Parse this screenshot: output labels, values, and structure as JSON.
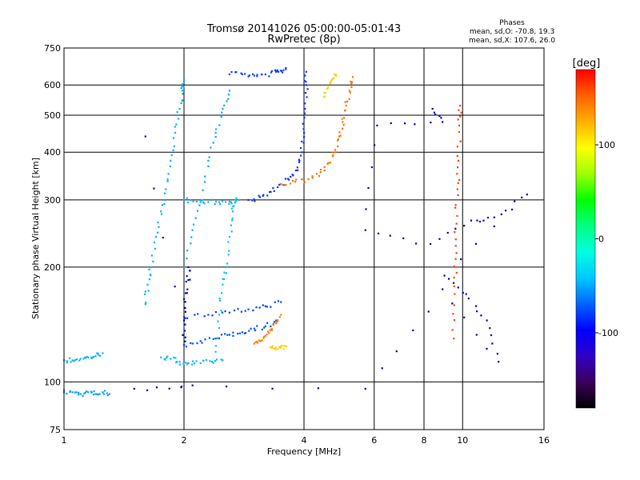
{
  "chart_data": {
    "type": "scatter",
    "title": "Tromsø 20141026 05:00:00-05:01:43",
    "subtitle": "RwPretec (8p)",
    "xlabel": "Frequency [MHz]",
    "ylabel": "Stationary phase Virtual Height [km]",
    "x_scale": "log",
    "y_scale": "log",
    "xlim": [
      1,
      16
    ],
    "ylim": [
      75,
      750
    ],
    "x_ticks": [
      1,
      2,
      4,
      6,
      8,
      10,
      16
    ],
    "y_ticks": [
      75,
      100,
      200,
      300,
      400,
      500,
      600,
      750
    ],
    "grid": true,
    "legend": {
      "title": "Phases",
      "lines": [
        "mean, sd,O: -70.8, 19.3",
        "mean, sd,X: 107.6, 26.0"
      ],
      "placement": "top-right"
    },
    "colorbar": {
      "label": "[deg]",
      "ticks": [
        100,
        0,
        -100
      ],
      "range": [
        -180,
        180
      ],
      "colors": [
        "#000000",
        "#3c005a",
        "#3000c8",
        "#0000ff",
        "#0064ff",
        "#00c8ff",
        "#00ffe0",
        "#00ff80",
        "#00ff00",
        "#a0ff00",
        "#ffff00",
        "#ffb000",
        "#ff6000",
        "#ff0000"
      ]
    },
    "series": [
      {
        "values": [
          [
            1.0,
            94
          ],
          [
            1.05,
            94
          ],
          [
            1.1,
            93
          ],
          [
            1.15,
            94
          ],
          [
            1.2,
            93
          ],
          [
            1.25,
            94
          ],
          [
            1.3,
            93
          ]
        ],
        "color": "#00a0ff"
      },
      {
        "values": [
          [
            1.0,
            114
          ],
          [
            1.05,
            114
          ],
          [
            1.1,
            115
          ],
          [
            1.15,
            116
          ],
          [
            1.2,
            117
          ],
          [
            1.25,
            119
          ]
        ],
        "color": "#00b4ff"
      },
      {
        "values": [
          [
            1.75,
            116
          ],
          [
            1.85,
            115
          ],
          [
            1.95,
            113
          ],
          [
            2.05,
            112
          ],
          [
            2.2,
            112
          ],
          [
            2.35,
            113
          ],
          [
            2.5,
            114
          ]
        ],
        "color": "#00b8ff"
      },
      {
        "values": [
          [
            1.6,
            160
          ],
          [
            1.62,
            180
          ],
          [
            1.65,
            200
          ],
          [
            1.7,
            240
          ],
          [
            1.75,
            280
          ],
          [
            1.8,
            320
          ],
          [
            1.85,
            380
          ],
          [
            1.9,
            450
          ],
          [
            1.95,
            520
          ],
          [
            1.98,
            580
          ],
          [
            2.0,
            620
          ]
        ],
        "color": "#00b0ff"
      },
      {
        "values": [
          [
            2.0,
            300
          ],
          [
            2.15,
            297
          ],
          [
            2.3,
            296
          ],
          [
            2.45,
            296
          ],
          [
            2.6,
            297
          ],
          [
            2.75,
            300
          ]
        ],
        "color": "#00b8ff"
      },
      {
        "values": [
          [
            2.0,
            200
          ],
          [
            2.1,
            250
          ],
          [
            2.2,
            300
          ],
          [
            2.3,
            380
          ],
          [
            2.4,
            450
          ],
          [
            2.5,
            520
          ],
          [
            2.6,
            580
          ]
        ],
        "color": "#00a8ff"
      },
      {
        "values": [
          [
            2.4,
            120
          ],
          [
            2.45,
            150
          ],
          [
            2.5,
            180
          ],
          [
            2.55,
            200
          ],
          [
            2.6,
            240
          ],
          [
            2.65,
            280
          ],
          [
            2.7,
            300
          ]
        ],
        "color": "#00c0ff"
      },
      {
        "values": [
          [
            2.0,
            125
          ],
          [
            2.0,
            145
          ],
          [
            2.0,
            165
          ],
          [
            2.05,
            185
          ],
          [
            2.05,
            200
          ]
        ],
        "color": "#0000d0"
      },
      {
        "values": [
          [
            2.0,
            125
          ],
          [
            2.2,
            128
          ],
          [
            2.4,
            130
          ],
          [
            2.6,
            133
          ],
          [
            2.8,
            135
          ],
          [
            3.0,
            138
          ],
          [
            3.2,
            140
          ],
          [
            3.4,
            145
          ]
        ],
        "color": "#0050ff"
      },
      {
        "values": [
          [
            2.0,
            148
          ],
          [
            2.3,
            150
          ],
          [
            2.6,
            152
          ],
          [
            2.9,
            155
          ],
          [
            3.2,
            158
          ],
          [
            3.5,
            162
          ]
        ],
        "color": "#0040ff"
      },
      {
        "values": [
          [
            3.0,
            126
          ],
          [
            3.1,
            128
          ],
          [
            3.2,
            132
          ],
          [
            3.3,
            137
          ],
          [
            3.4,
            143
          ],
          [
            3.5,
            150
          ]
        ],
        "color": "#ff8000"
      },
      {
        "values": [
          [
            3.3,
            123
          ],
          [
            3.4,
            123
          ],
          [
            3.5,
            123
          ],
          [
            3.6,
            124
          ]
        ],
        "color": "#ffd000"
      },
      {
        "values": [
          [
            2.9,
            300
          ],
          [
            3.1,
            305
          ],
          [
            3.3,
            315
          ],
          [
            3.5,
            330
          ],
          [
            3.7,
            345
          ],
          [
            3.85,
            365
          ],
          [
            3.95,
            400
          ],
          [
            4.0,
            450
          ],
          [
            4.02,
            520
          ],
          [
            4.05,
            600
          ],
          [
            4.05,
            650
          ]
        ],
        "color": "#1030ff"
      },
      {
        "values": [
          [
            3.5,
            330
          ],
          [
            3.8,
            335
          ],
          [
            4.1,
            340
          ],
          [
            4.4,
            355
          ],
          [
            4.6,
            375
          ],
          [
            4.8,
            400
          ],
          [
            4.9,
            440
          ],
          [
            5.0,
            480
          ],
          [
            5.1,
            530
          ],
          [
            5.2,
            580
          ],
          [
            5.3,
            630
          ]
        ],
        "color": "#ff7000"
      },
      {
        "values": [
          [
            4.5,
            560
          ],
          [
            4.6,
            590
          ],
          [
            4.7,
            620
          ],
          [
            4.8,
            640
          ]
        ],
        "color": "#ffd000"
      },
      {
        "values": [
          [
            2.6,
            640
          ],
          [
            2.8,
            640
          ],
          [
            3.0,
            635
          ],
          [
            3.2,
            640
          ],
          [
            3.4,
            650
          ],
          [
            3.5,
            655
          ],
          [
            3.6,
            660
          ]
        ],
        "color": "#1040ff"
      },
      {
        "values": [
          [
            9.5,
            130
          ],
          [
            9.55,
            170
          ],
          [
            9.6,
            210
          ],
          [
            9.65,
            260
          ],
          [
            9.7,
            320
          ],
          [
            9.75,
            380
          ],
          [
            9.8,
            470
          ],
          [
            9.85,
            530
          ]
        ],
        "color": "#ff4000"
      },
      {
        "values": [
          [
            8.4,
            520
          ],
          [
            8.9,
            480
          ],
          [
            6.1,
            470
          ],
          [
            5.7,
            250
          ],
          [
            8.3,
            230
          ],
          [
            10.5,
            265
          ],
          [
            12.0,
            270
          ],
          [
            14.5,
            310
          ],
          [
            9.0,
            190
          ],
          [
            10.2,
            170
          ],
          [
            11.5,
            145
          ],
          [
            12.3,
            113
          ],
          [
            8.9,
            175
          ],
          [
            5.7,
            96
          ],
          [
            1.5,
            96
          ],
          [
            2.1,
            98
          ],
          [
            1.6,
            440
          ]
        ],
        "color": "#0000b0"
      }
    ]
  }
}
